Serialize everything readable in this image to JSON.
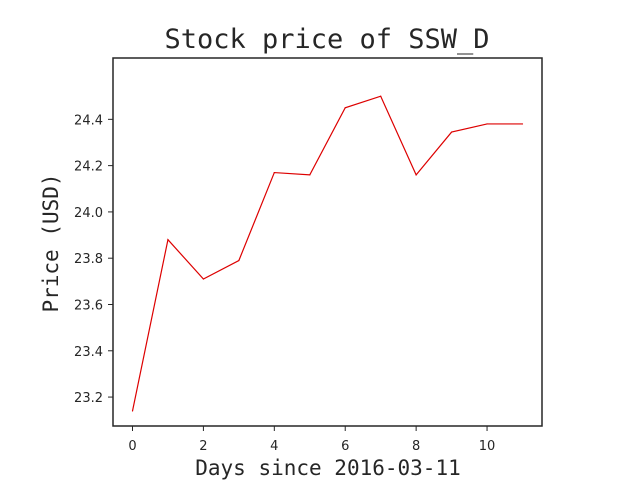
{
  "chart_data": {
    "type": "line",
    "title": "Stock price of SSW_D",
    "xlabel": "Days since 2016-03-11",
    "ylabel": "Price (USD)",
    "x": [
      0,
      1,
      2,
      3,
      4,
      5,
      6,
      7,
      8,
      9,
      10,
      11
    ],
    "series": [
      {
        "values": [
          23.14,
          23.88,
          23.71,
          23.79,
          24.17,
          24.16,
          24.45,
          24.5,
          24.16,
          24.345,
          24.38,
          24.38
        ],
        "color": "#dd0000"
      }
    ],
    "xlim": [
      -0.55,
      11.55
    ],
    "ylim": [
      23.075,
      24.665
    ],
    "xticks": [
      0,
      2,
      4,
      6,
      8,
      10
    ],
    "xtick_labels": [
      "0",
      "2",
      "4",
      "6",
      "8",
      "10"
    ],
    "yticks": [
      23.2,
      23.4,
      23.6,
      23.8,
      24.0,
      24.2,
      24.4
    ],
    "ytick_labels": [
      "23.2",
      "23.4",
      "23.6",
      "23.8",
      "24.0",
      "24.2",
      "24.4"
    ],
    "grid": false,
    "legend": "none"
  }
}
